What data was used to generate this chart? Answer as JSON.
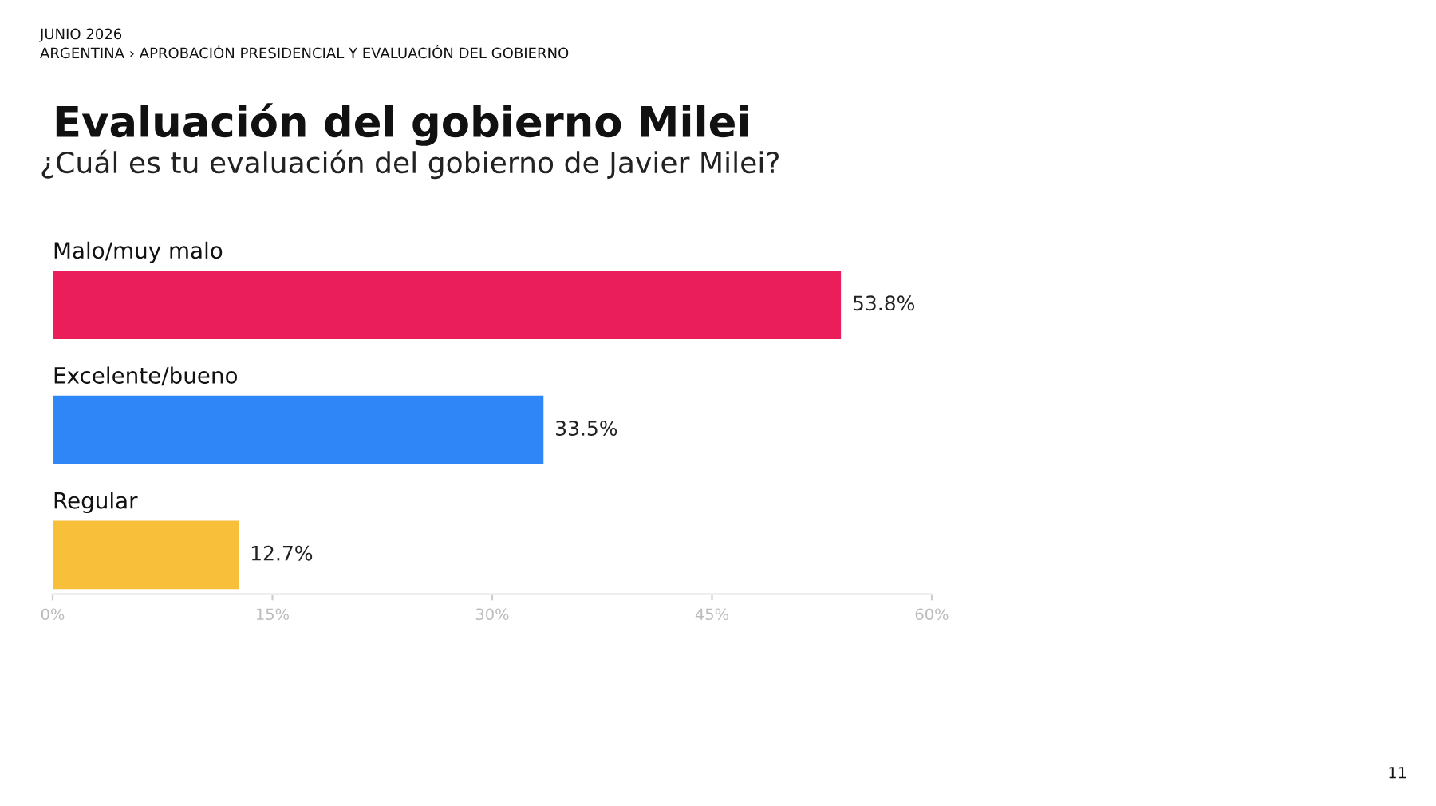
{
  "chart_data": {
    "type": "bar",
    "orientation": "horizontal",
    "title": "Evaluación del gobierno Milei",
    "subtitle": "¿Cuál es tu evaluación del gobierno de Javier Milei?",
    "annotations": [
      "JUNIO 2026",
      "ARGENTINA › APROBACIÓN PRESIDENCIAL Y EVALUACIÓN DEL GOBIERNO",
      "11"
    ],
    "categories": [
      "Malo/muy malo",
      "Excelente/bueno",
      "Regular"
    ],
    "values": [
      53.8,
      33.5,
      12.7
    ],
    "colors": [
      "#e91e5a",
      "#2f86f6",
      "#f7bf3a"
    ],
    "value_labels": [
      "53.8%",
      "33.5%",
      "12.7%"
    ],
    "xlim": [
      0,
      60
    ],
    "xticks": [
      {
        "value": 0,
        "label": "0%"
      },
      {
        "value": 15,
        "label": "15%"
      },
      {
        "value": 30,
        "label": "30%"
      },
      {
        "value": 45,
        "label": "45%"
      },
      {
        "value": 60,
        "label": "60%"
      }
    ],
    "grid": false,
    "legend": false
  }
}
